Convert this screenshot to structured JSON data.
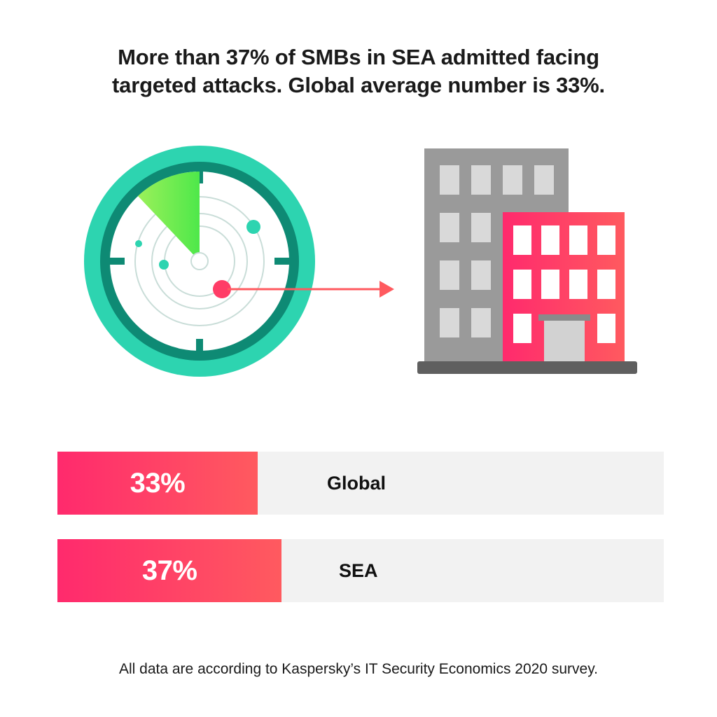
{
  "headline": {
    "line1": "More than 37% of SMBs in SEA admitted facing",
    "line2": "targeted attacks. Global average number is 33%."
  },
  "chart_data": {
    "type": "bar",
    "orientation": "horizontal",
    "unit": "%",
    "ylim": [
      0,
      100
    ],
    "categories": [
      "Global",
      "SEA"
    ],
    "values": [
      33,
      37
    ],
    "value_labels": [
      "33%",
      "37%"
    ]
  },
  "illustration": {
    "radar_icon": "radar-icon",
    "building_icon": "office-building-icon",
    "arrow_icon": "arrow-right-icon"
  },
  "colors": {
    "accent_red": "#ff2a6d",
    "accent_coral": "#ff5a5f",
    "radar_teal": "#2dd4b0",
    "radar_dark": "#0e8a74",
    "radar_sweep": "#66ee44",
    "building_gray": "#9a9a9a",
    "track_gray": "#f2f2f2"
  },
  "footnote": "All data are according to Kaspersky’s IT Security Economics 2020 survey."
}
